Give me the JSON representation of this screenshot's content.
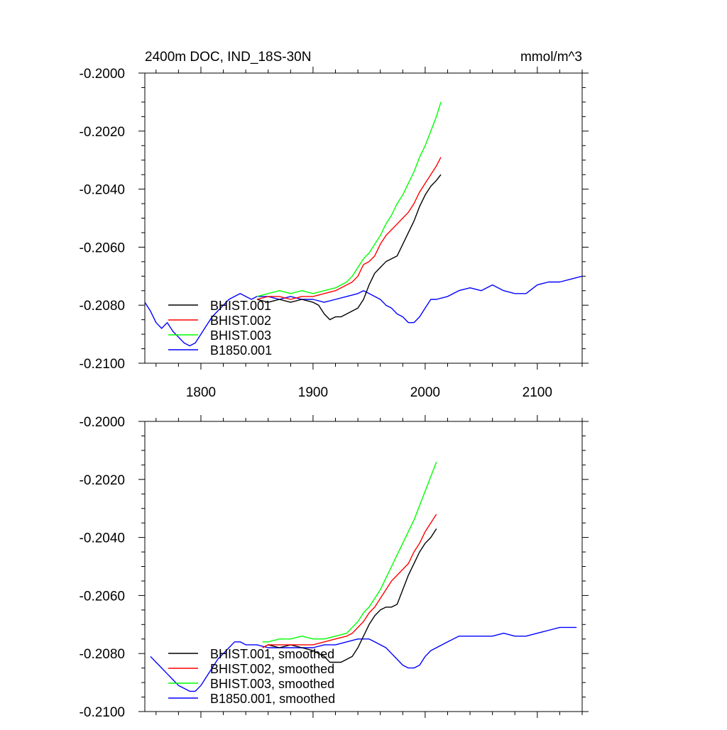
{
  "chart_data": [
    {
      "type": "line",
      "title": "2400m DOC, IND_18S-30N",
      "units": "mmol/m^3",
      "xlabel": "",
      "ylabel": "",
      "xlim": [
        1750,
        2140
      ],
      "ylim": [
        -0.21,
        -0.2
      ],
      "x_ticks": [
        1800,
        1900,
        2000,
        2100
      ],
      "x_tick_labels": [
        "1800",
        "1900",
        "2000",
        "2100"
      ],
      "y_ticks": [
        -0.2,
        -0.202,
        -0.204,
        -0.206,
        -0.208,
        -0.21
      ],
      "y_tick_labels": [
        "-0.2000",
        "-0.2020",
        "-0.2040",
        "-0.2060",
        "-0.2080",
        "-0.2100"
      ],
      "grid": false,
      "legend_position": "bottom-left",
      "series": [
        {
          "name": "BHIST.001",
          "color": "#000000",
          "x": [
            1850,
            1860,
            1870,
            1880,
            1890,
            1900,
            1905,
            1910,
            1915,
            1920,
            1925,
            1930,
            1935,
            1940,
            1945,
            1950,
            1955,
            1960,
            1965,
            1970,
            1975,
            1980,
            1985,
            1990,
            1995,
            2000,
            2005,
            2010,
            2014
          ],
          "y": [
            -0.2078,
            -0.2079,
            -0.2078,
            -0.2079,
            -0.2078,
            -0.2079,
            -0.208,
            -0.2083,
            -0.2085,
            -0.2084,
            -0.2084,
            -0.2083,
            -0.2082,
            -0.2081,
            -0.2078,
            -0.2073,
            -0.2069,
            -0.2067,
            -0.2065,
            -0.2064,
            -0.2063,
            -0.2059,
            -0.2055,
            -0.2051,
            -0.2046,
            -0.2042,
            -0.2039,
            -0.2037,
            -0.2035
          ]
        },
        {
          "name": "BHIST.002",
          "color": "#ff0000",
          "x": [
            1850,
            1860,
            1870,
            1880,
            1890,
            1900,
            1910,
            1920,
            1925,
            1930,
            1935,
            1940,
            1945,
            1950,
            1955,
            1960,
            1965,
            1970,
            1975,
            1980,
            1985,
            1990,
            1995,
            2000,
            2005,
            2010,
            2014
          ],
          "y": [
            -0.2078,
            -0.2077,
            -0.2077,
            -0.2078,
            -0.2077,
            -0.2077,
            -0.2076,
            -0.2075,
            -0.2074,
            -0.2073,
            -0.2072,
            -0.207,
            -0.2066,
            -0.2065,
            -0.2063,
            -0.2059,
            -0.2056,
            -0.2054,
            -0.2052,
            -0.205,
            -0.2048,
            -0.2045,
            -0.2041,
            -0.2038,
            -0.2035,
            -0.2032,
            -0.2029
          ]
        },
        {
          "name": "BHIST.003",
          "color": "#00ff00",
          "x": [
            1850,
            1860,
            1870,
            1880,
            1890,
            1900,
            1910,
            1920,
            1925,
            1930,
            1935,
            1940,
            1945,
            1950,
            1955,
            1960,
            1965,
            1970,
            1975,
            1980,
            1985,
            1990,
            1995,
            2000,
            2005,
            2010,
            2014
          ],
          "y": [
            -0.2077,
            -0.2076,
            -0.2075,
            -0.2076,
            -0.2075,
            -0.2076,
            -0.2075,
            -0.2074,
            -0.2073,
            -0.2072,
            -0.207,
            -0.2067,
            -0.2064,
            -0.2062,
            -0.2059,
            -0.2056,
            -0.2052,
            -0.2049,
            -0.2045,
            -0.2042,
            -0.2038,
            -0.2034,
            -0.2029,
            -0.2025,
            -0.202,
            -0.2015,
            -0.201
          ]
        },
        {
          "name": "B1850.001",
          "color": "#0000ff",
          "x": [
            1750,
            1755,
            1760,
            1765,
            1770,
            1775,
            1780,
            1785,
            1790,
            1795,
            1800,
            1805,
            1810,
            1815,
            1820,
            1825,
            1830,
            1835,
            1840,
            1845,
            1850,
            1860,
            1870,
            1880,
            1890,
            1900,
            1910,
            1920,
            1930,
            1940,
            1945,
            1950,
            1955,
            1960,
            1965,
            1970,
            1975,
            1980,
            1985,
            1990,
            1995,
            2000,
            2005,
            2010,
            2020,
            2030,
            2040,
            2050,
            2060,
            2070,
            2080,
            2090,
            2100,
            2110,
            2120,
            2130,
            2140
          ],
          "y": [
            -0.2079,
            -0.2082,
            -0.2086,
            -0.2088,
            -0.2086,
            -0.2089,
            -0.2091,
            -0.2093,
            -0.2094,
            -0.2093,
            -0.209,
            -0.2087,
            -0.2084,
            -0.2082,
            -0.208,
            -0.2078,
            -0.2077,
            -0.2076,
            -0.2077,
            -0.2078,
            -0.2077,
            -0.2077,
            -0.2078,
            -0.2077,
            -0.2078,
            -0.2078,
            -0.2079,
            -0.2078,
            -0.2077,
            -0.2076,
            -0.2075,
            -0.2076,
            -0.2077,
            -0.2078,
            -0.208,
            -0.2081,
            -0.2083,
            -0.2084,
            -0.2086,
            -0.2086,
            -0.2084,
            -0.2081,
            -0.2078,
            -0.2078,
            -0.2077,
            -0.2075,
            -0.2074,
            -0.2075,
            -0.2073,
            -0.2075,
            -0.2076,
            -0.2076,
            -0.2073,
            -0.2072,
            -0.2072,
            -0.2071,
            -0.207
          ]
        }
      ]
    },
    {
      "type": "line",
      "title": "",
      "units": "",
      "xlabel": "",
      "ylabel": "",
      "xlim": [
        1750,
        2140
      ],
      "ylim": [
        -0.21,
        -0.2
      ],
      "x_ticks": [
        1800,
        1900,
        2000,
        2100
      ],
      "x_tick_labels": [],
      "y_ticks": [
        -0.2,
        -0.202,
        -0.204,
        -0.206,
        -0.208,
        -0.21
      ],
      "y_tick_labels": [
        "-0.2000",
        "-0.2020",
        "-0.2040",
        "-0.2060",
        "-0.2080",
        "-0.2100"
      ],
      "grid": false,
      "legend_position": "bottom-left",
      "series": [
        {
          "name": "BHIST.001, smoothed",
          "color": "#000000",
          "x": [
            1855,
            1860,
            1870,
            1880,
            1890,
            1900,
            1910,
            1915,
            1920,
            1925,
            1930,
            1935,
            1940,
            1945,
            1950,
            1955,
            1960,
            1965,
            1970,
            1975,
            1980,
            1985,
            1990,
            1995,
            2000,
            2005,
            2010
          ],
          "y": [
            -0.2078,
            -0.2077,
            -0.2078,
            -0.2077,
            -0.2078,
            -0.2079,
            -0.2081,
            -0.2083,
            -0.2083,
            -0.2083,
            -0.2082,
            -0.2081,
            -0.2078,
            -0.2074,
            -0.207,
            -0.2067,
            -0.2065,
            -0.2064,
            -0.2064,
            -0.2063,
            -0.2058,
            -0.2053,
            -0.2049,
            -0.2045,
            -0.2042,
            -0.204,
            -0.2037
          ]
        },
        {
          "name": "BHIST.002, smoothed",
          "color": "#ff0000",
          "x": [
            1855,
            1860,
            1870,
            1880,
            1890,
            1900,
            1910,
            1920,
            1930,
            1935,
            1940,
            1945,
            1950,
            1955,
            1960,
            1965,
            1970,
            1975,
            1980,
            1985,
            1990,
            1995,
            2000,
            2005,
            2010
          ],
          "y": [
            -0.2078,
            -0.2077,
            -0.2077,
            -0.2077,
            -0.2077,
            -0.2077,
            -0.2076,
            -0.2075,
            -0.2074,
            -0.2073,
            -0.2071,
            -0.2069,
            -0.2066,
            -0.2064,
            -0.2061,
            -0.2058,
            -0.2055,
            -0.2053,
            -0.2051,
            -0.2049,
            -0.2045,
            -0.2042,
            -0.2038,
            -0.2035,
            -0.2032
          ]
        },
        {
          "name": "BHIST.003, smoothed",
          "color": "#00ff00",
          "x": [
            1855,
            1860,
            1870,
            1880,
            1890,
            1900,
            1910,
            1920,
            1930,
            1935,
            1940,
            1945,
            1950,
            1955,
            1960,
            1965,
            1970,
            1975,
            1980,
            1985,
            1990,
            1995,
            2000,
            2005,
            2010
          ],
          "y": [
            -0.2076,
            -0.2076,
            -0.2075,
            -0.2075,
            -0.2074,
            -0.2075,
            -0.2075,
            -0.2074,
            -0.2073,
            -0.2071,
            -0.2069,
            -0.2066,
            -0.2064,
            -0.2061,
            -0.2058,
            -0.2054,
            -0.205,
            -0.2046,
            -0.2042,
            -0.2038,
            -0.2034,
            -0.2029,
            -0.2024,
            -0.2019,
            -0.2014
          ]
        },
        {
          "name": "B1850.001, smoothed",
          "color": "#0000ff",
          "x": [
            1755,
            1760,
            1765,
            1770,
            1775,
            1780,
            1785,
            1790,
            1795,
            1800,
            1805,
            1810,
            1815,
            1820,
            1825,
            1830,
            1835,
            1840,
            1850,
            1860,
            1870,
            1880,
            1890,
            1900,
            1910,
            1920,
            1930,
            1940,
            1950,
            1955,
            1960,
            1965,
            1970,
            1975,
            1980,
            1985,
            1990,
            1995,
            2000,
            2005,
            2010,
            2020,
            2030,
            2040,
            2050,
            2060,
            2070,
            2080,
            2090,
            2100,
            2110,
            2120,
            2130,
            2135
          ],
          "y": [
            -0.2081,
            -0.2083,
            -0.2085,
            -0.2087,
            -0.2089,
            -0.2091,
            -0.2092,
            -0.2093,
            -0.2093,
            -0.2091,
            -0.2088,
            -0.2085,
            -0.2082,
            -0.208,
            -0.2078,
            -0.2076,
            -0.2076,
            -0.2077,
            -0.2077,
            -0.2078,
            -0.2078,
            -0.2078,
            -0.2078,
            -0.2078,
            -0.2077,
            -0.2077,
            -0.2076,
            -0.2075,
            -0.2075,
            -0.2076,
            -0.2077,
            -0.2078,
            -0.208,
            -0.2082,
            -0.2084,
            -0.2085,
            -0.2085,
            -0.2084,
            -0.2081,
            -0.2079,
            -0.2078,
            -0.2076,
            -0.2074,
            -0.2074,
            -0.2074,
            -0.2074,
            -0.2073,
            -0.2074,
            -0.2074,
            -0.2073,
            -0.2072,
            -0.2071,
            -0.2071,
            -0.2071
          ]
        }
      ]
    }
  ]
}
